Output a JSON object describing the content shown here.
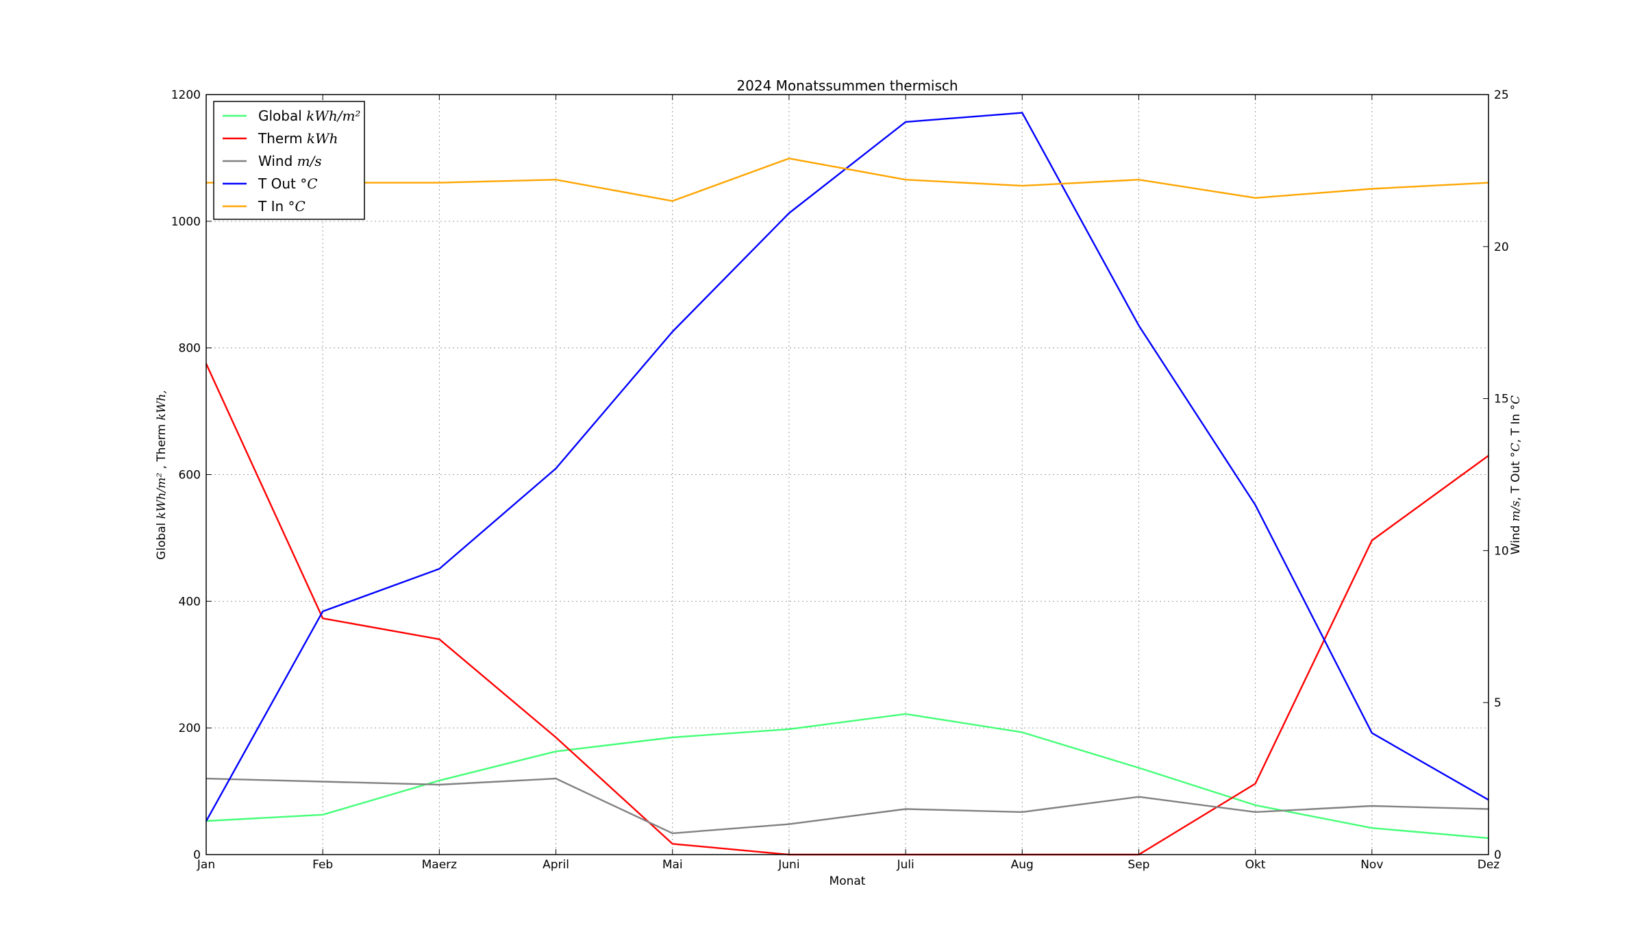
{
  "chart_data": {
    "type": "line",
    "title": "2024 Monatssummen thermisch",
    "xlabel": "Monat",
    "ylabel_left": {
      "prefix": "Global ",
      "unit1": "kWh/m²",
      "mid": " , Therm ",
      "unit2": "kWh,"
    },
    "ylabel_right": {
      "prefix": "Wind ",
      "unit1": "m/s",
      "mid": ", T Out ",
      "unit2": "°C",
      "mid2": ", T In ",
      "unit3": "°C"
    },
    "categories": [
      "Jan",
      "Feb",
      "Maerz",
      "April",
      "Mai",
      "Juni",
      "Juli",
      "Aug",
      "Sep",
      "Okt",
      "Nov",
      "Dez"
    ],
    "ylim_left": [
      0,
      1200
    ],
    "ylim_right": [
      0,
      25
    ],
    "yticks_left": [
      "0",
      "200",
      "400",
      "600",
      "800",
      "1000",
      "1200"
    ],
    "yticks_right": [
      "0",
      "5",
      "10",
      "15",
      "20",
      "25"
    ],
    "grid": true,
    "legend_position": "top-left",
    "series": [
      {
        "name": "Global",
        "unit": "kWh/m²",
        "axis": "left",
        "color": "#44ff77",
        "values": [
          53,
          63,
          117,
          163,
          185,
          198,
          222,
          193,
          137,
          78,
          42,
          26
        ]
      },
      {
        "name": "Therm",
        "unit": "kWh",
        "axis": "left",
        "color": "#ff0000",
        "values": [
          775,
          373,
          340,
          185,
          17,
          0,
          0,
          0,
          0,
          112,
          496,
          630
        ]
      },
      {
        "name": "Wind",
        "unit": "m/s",
        "axis": "right",
        "color": "#808080",
        "values": [
          2.5,
          2.4,
          2.3,
          2.5,
          0.7,
          1.0,
          1.5,
          1.4,
          1.9,
          1.4,
          1.6,
          1.5
        ]
      },
      {
        "name": "T Out",
        "unit": "°C",
        "axis": "right",
        "color": "#0000ff",
        "values": [
          1.1,
          8.0,
          9.4,
          12.7,
          17.2,
          21.1,
          24.1,
          24.4,
          17.4,
          11.5,
          4.0,
          1.8
        ]
      },
      {
        "name": "T In",
        "unit": "°C",
        "axis": "right",
        "color": "#ffa500",
        "values": [
          22.1,
          22.1,
          22.1,
          22.2,
          21.5,
          22.9,
          22.2,
          22.0,
          22.2,
          21.6,
          21.9,
          22.1
        ]
      }
    ]
  }
}
